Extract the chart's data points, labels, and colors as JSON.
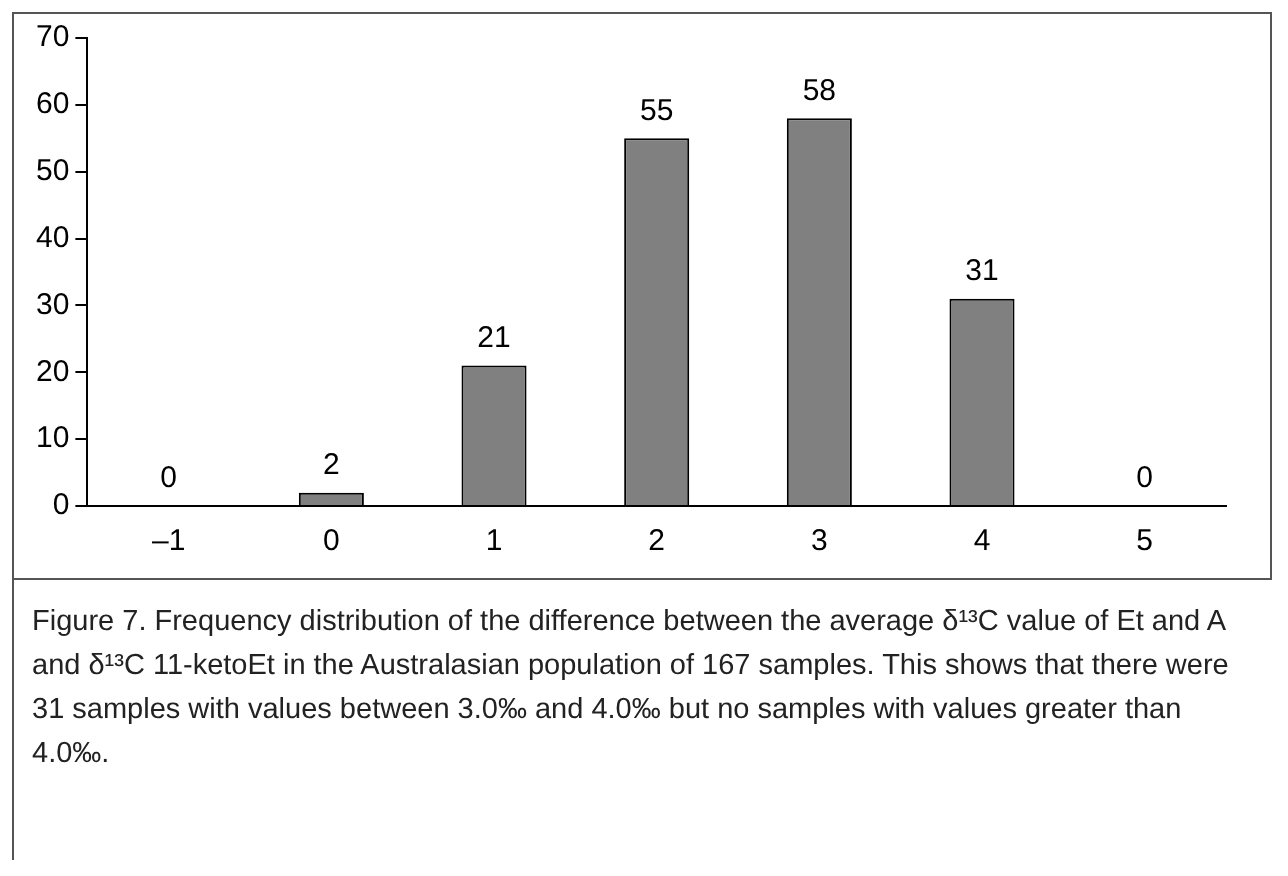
{
  "chart_data": {
    "type": "bar",
    "categories": [
      "–1",
      "0",
      "1",
      "2",
      "3",
      "4",
      "5"
    ],
    "values": [
      0,
      2,
      21,
      55,
      58,
      31,
      0
    ],
    "color": "#808080",
    "ylim": [
      0,
      70
    ],
    "yticks": [
      0,
      10,
      20,
      30,
      40,
      50,
      60,
      70
    ],
    "grid": false,
    "data_labels": true,
    "annotations": [
      "Figure 7. Frequency distribution of the difference between the average δ¹³C value of Et and A and δ¹³C 11-ketoEt in the Australasian population of 167 samples. This shows that there were 31 samples with values between 3.0‰ and 4.0‰ but no samples with values greater than 4.0‰."
    ]
  }
}
